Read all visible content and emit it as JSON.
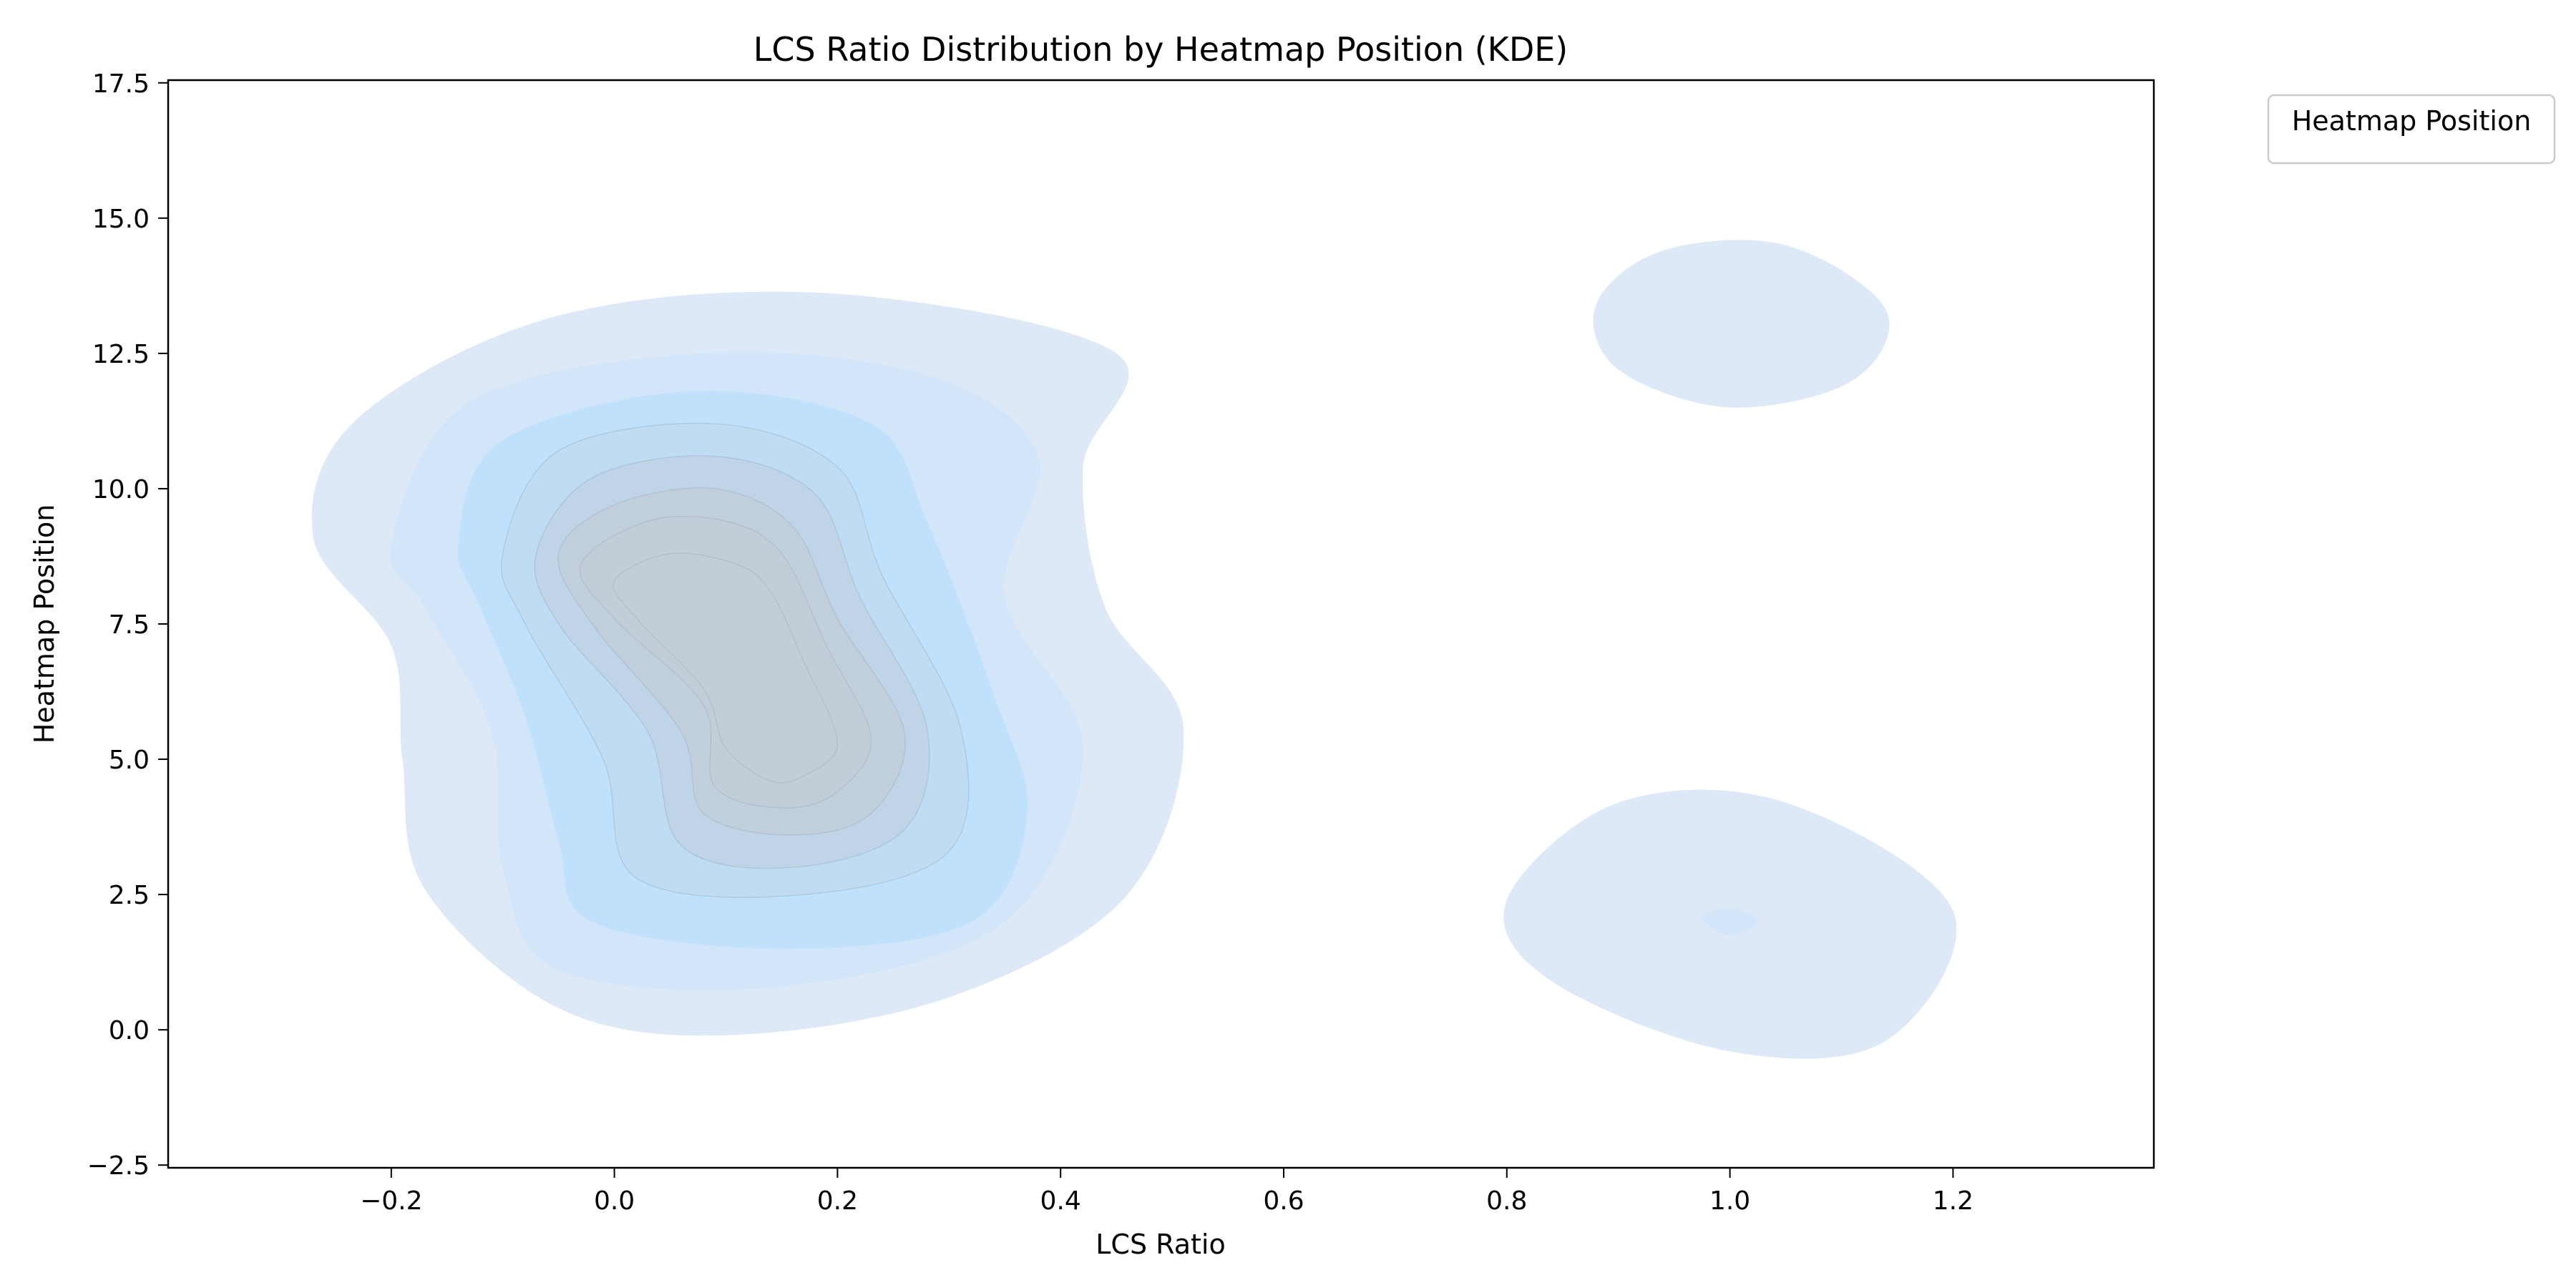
{
  "chart_data": {
    "type": "kde",
    "title": "LCS Ratio Distribution by Heatmap Position (KDE)",
    "xlabel": "LCS Ratio",
    "ylabel": "Heatmap Position",
    "xlim": [
      -0.4,
      1.38
    ],
    "ylim": [
      -2.55,
      17.55
    ],
    "xticks": [
      -0.2,
      0.0,
      0.2,
      0.4,
      0.6,
      0.8,
      1.0,
      1.2
    ],
    "xtick_labels": [
      "−0.2",
      "0.0",
      "0.2",
      "0.4",
      "0.6",
      "0.8",
      "1.0",
      "1.2"
    ],
    "yticks": [
      -2.5,
      0.0,
      2.5,
      5.0,
      7.5,
      10.0,
      12.5,
      15.0,
      17.5
    ],
    "ytick_labels": [
      "−2.5",
      "0.0",
      "2.5",
      "5.0",
      "7.5",
      "10.0",
      "12.5",
      "15.0",
      "17.5"
    ],
    "grid": false,
    "legend": {
      "title": "Heatmap Position",
      "placement": "outside-top-right",
      "entries": []
    },
    "colors": {
      "fill_light": "#dde9f7",
      "fill_mid": "#c0e1fb",
      "fill_dense": "#c3cdd8",
      "contour_line": "#9fb4c6"
    },
    "regions": [
      {
        "name": "main-cluster",
        "center": {
          "x": 0.12,
          "y": 6.7
        },
        "levels": [
          {
            "points": [
              [
                -0.27,
                9.1
              ],
              [
                -0.23,
                11.3
              ],
              [
                -0.05,
                13.2
              ],
              [
                0.2,
                13.6
              ],
              [
                0.45,
                12.5
              ],
              [
                0.42,
                10.4
              ],
              [
                0.44,
                7.8
              ],
              [
                0.51,
                5.6
              ],
              [
                0.46,
                2.5
              ],
              [
                0.3,
                0.6
              ],
              [
                0.1,
                -0.1
              ],
              [
                -0.05,
                0.4
              ],
              [
                -0.17,
                2.6
              ],
              [
                -0.19,
                5.0
              ],
              [
                -0.2,
                7.1
              ]
            ]
          },
          {
            "points": [
              [
                -0.2,
                9.0
              ],
              [
                -0.13,
                11.6
              ],
              [
                0.08,
                12.5
              ],
              [
                0.28,
                12.1
              ],
              [
                0.38,
                10.6
              ],
              [
                0.35,
                8.0
              ],
              [
                0.42,
                5.2
              ],
              [
                0.35,
                2.0
              ],
              [
                0.15,
                0.8
              ],
              [
                -0.05,
                1.1
              ],
              [
                -0.1,
                3.0
              ],
              [
                -0.11,
                5.5
              ],
              [
                -0.17,
                7.8
              ]
            ]
          },
          {
            "points": [
              [
                -0.14,
                9.0
              ],
              [
                -0.1,
                10.9
              ],
              [
                0.07,
                11.8
              ],
              [
                0.23,
                11.2
              ],
              [
                0.28,
                9.4
              ],
              [
                0.34,
                6.2
              ],
              [
                0.37,
                4.0
              ],
              [
                0.32,
                2.0
              ],
              [
                0.15,
                1.5
              ],
              [
                -0.02,
                2.0
              ],
              [
                -0.05,
                3.5
              ],
              [
                -0.08,
                5.8
              ],
              [
                -0.12,
                7.8
              ]
            ]
          },
          {
            "points": [
              [
                -0.1,
                8.8
              ],
              [
                -0.05,
                10.7
              ],
              [
                0.09,
                11.2
              ],
              [
                0.2,
                10.4
              ],
              [
                0.24,
                8.4
              ],
              [
                0.31,
                5.6
              ],
              [
                0.3,
                3.3
              ],
              [
                0.17,
                2.5
              ],
              [
                0.02,
                2.8
              ],
              [
                -0.01,
                5.0
              ],
              [
                -0.08,
                7.5
              ]
            ]
          },
          {
            "points": [
              [
                -0.07,
                8.8
              ],
              [
                -0.02,
                10.2
              ],
              [
                0.09,
                10.6
              ],
              [
                0.18,
                9.9
              ],
              [
                0.22,
                8.0
              ],
              [
                0.28,
                5.6
              ],
              [
                0.26,
                3.7
              ],
              [
                0.16,
                3.0
              ],
              [
                0.06,
                3.4
              ],
              [
                0.03,
                5.5
              ],
              [
                -0.05,
                7.5
              ]
            ]
          },
          {
            "points": [
              [
                -0.05,
                8.8
              ],
              [
                0.0,
                9.7
              ],
              [
                0.09,
                10.0
              ],
              [
                0.16,
                9.3
              ],
              [
                0.2,
                7.6
              ],
              [
                0.26,
                5.5
              ],
              [
                0.23,
                4.0
              ],
              [
                0.16,
                3.6
              ],
              [
                0.08,
                4.0
              ],
              [
                0.06,
                5.5
              ],
              [
                -0.02,
                7.5
              ]
            ]
          },
          {
            "points": [
              [
                -0.03,
                8.6
              ],
              [
                0.03,
                9.4
              ],
              [
                0.1,
                9.4
              ],
              [
                0.15,
                8.8
              ],
              [
                0.19,
                7.1
              ],
              [
                0.23,
                5.4
              ],
              [
                0.2,
                4.4
              ],
              [
                0.15,
                4.1
              ],
              [
                0.09,
                4.5
              ],
              [
                0.08,
                6.0
              ],
              [
                0.0,
                7.6
              ]
            ]
          },
          {
            "points": [
              [
                0.0,
                8.3
              ],
              [
                0.05,
                8.8
              ],
              [
                0.11,
                8.6
              ],
              [
                0.14,
                8.1
              ],
              [
                0.17,
                6.8
              ],
              [
                0.2,
                5.3
              ],
              [
                0.17,
                4.7
              ],
              [
                0.14,
                4.6
              ],
              [
                0.1,
                5.2
              ],
              [
                0.08,
                6.3
              ],
              [
                0.02,
                7.6
              ]
            ]
          }
        ]
      },
      {
        "name": "upper-right-cluster",
        "center": {
          "x": 1.0,
          "y": 13.0
        },
        "levels": [
          {
            "points": [
              [
                0.88,
                13.4
              ],
              [
                0.94,
                14.4
              ],
              [
                1.05,
                14.5
              ],
              [
                1.14,
                13.3
              ],
              [
                1.11,
                12.0
              ],
              [
                1.0,
                11.5
              ],
              [
                0.9,
                12.2
              ]
            ]
          }
        ]
      },
      {
        "name": "lower-right-cluster",
        "center": {
          "x": 1.0,
          "y": 2.0
        },
        "levels": [
          {
            "points": [
              [
                0.8,
                2.4
              ],
              [
                0.9,
                4.2
              ],
              [
                1.05,
                4.2
              ],
              [
                1.2,
                2.2
              ],
              [
                1.14,
                -0.2
              ],
              [
                1.0,
                -0.4
              ],
              [
                0.84,
                0.9
              ]
            ]
          },
          {
            "points": [
              [
                0.975,
                2.05
              ],
              [
                1.0,
                2.25
              ],
              [
                1.025,
                2.0
              ],
              [
                1.0,
                1.75
              ]
            ]
          }
        ]
      }
    ]
  }
}
